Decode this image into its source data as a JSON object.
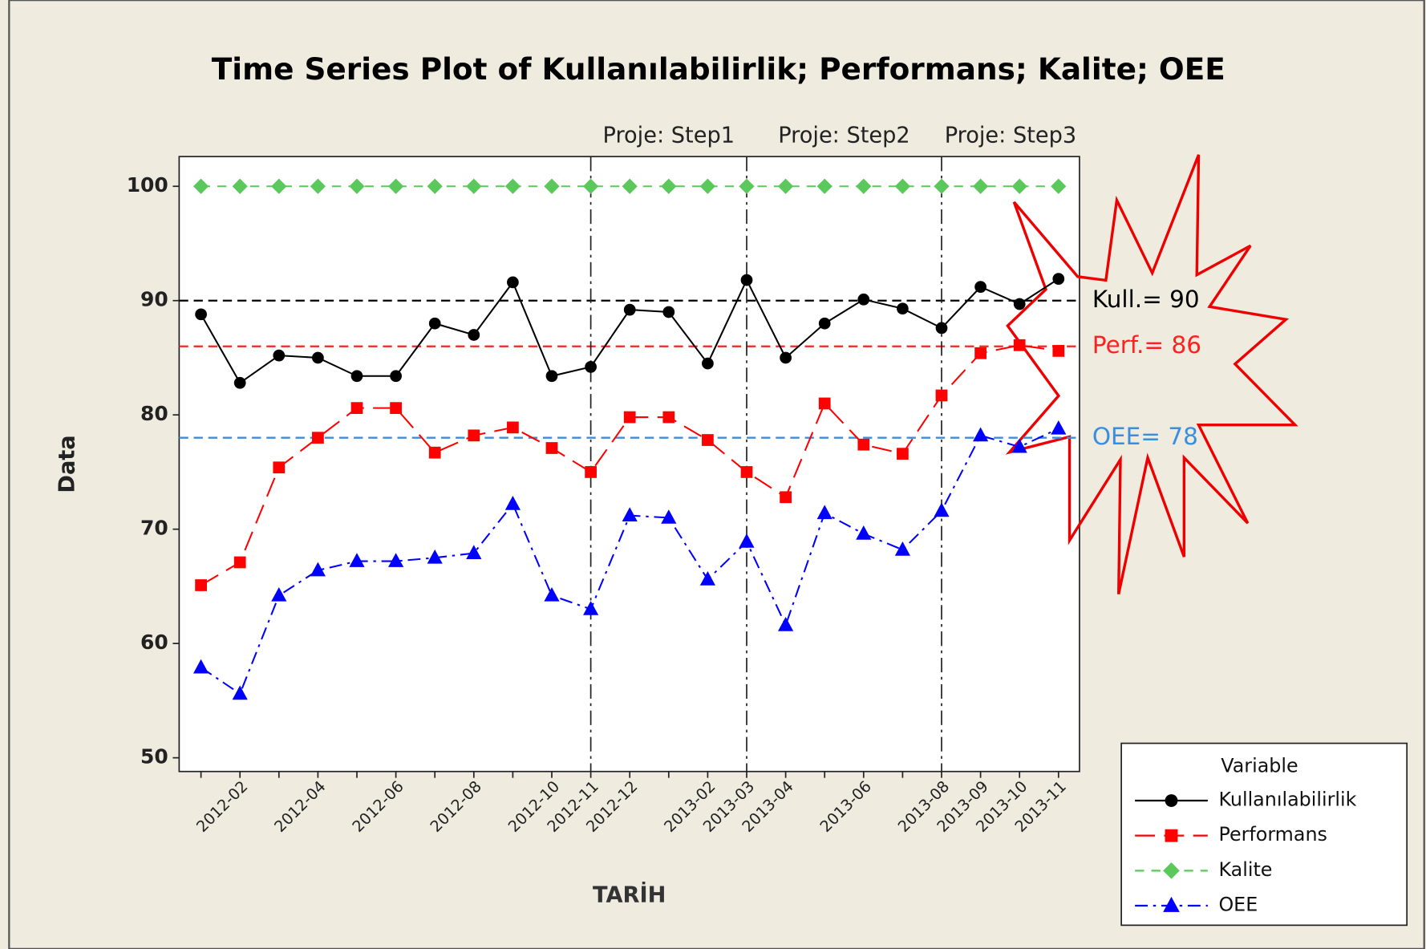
{
  "chart_data": {
    "type": "line",
    "title": "Time Series Plot of Kullanılabilirlik; Performans; Kalite; OEE",
    "x_label": "TARİH",
    "y_label": "Data",
    "categories": [
      null,
      "2012-02",
      null,
      "2012-04",
      null,
      "2012-06",
      null,
      "2012-08",
      null,
      "2012-10",
      "2012-11",
      "2012-12",
      null,
      "2013-02",
      "2013-03",
      "2013-04",
      null,
      "2013-06",
      null,
      "2013-08",
      "2013-09",
      "2013-10",
      "2013-11"
    ],
    "ylim": [
      48.8,
      102.6
    ],
    "yticks": [
      50,
      60,
      70,
      80,
      90,
      100
    ],
    "series": [
      {
        "name": "Kullanılabilirlik",
        "color": "#000000",
        "marker": "circle",
        "linestyle": "solid",
        "values": [
          88.8,
          82.8,
          85.2,
          85.0,
          83.4,
          83.4,
          88.0,
          87.0,
          91.6,
          83.4,
          84.2,
          89.2,
          89.0,
          84.5,
          91.8,
          85.0,
          88.0,
          90.1,
          89.3,
          87.6,
          91.2,
          89.7,
          91.9
        ]
      },
      {
        "name": "Performans",
        "color": "#ff0000",
        "marker": "square",
        "linestyle": "longdash",
        "values": [
          65.1,
          67.1,
          75.4,
          78.0,
          80.6,
          80.6,
          76.7,
          78.2,
          78.9,
          77.1,
          75.0,
          79.8,
          79.8,
          77.8,
          75.0,
          72.8,
          81.0,
          77.4,
          76.6,
          81.7,
          85.4,
          86.1,
          85.6
        ]
      },
      {
        "name": "Kalite",
        "color": "#5bc85b",
        "marker": "diamond",
        "linestyle": "dash",
        "values": [
          100,
          100,
          100,
          100,
          100,
          100,
          100,
          100,
          100,
          100,
          100,
          100,
          100,
          100,
          100,
          100,
          100,
          100,
          100,
          100,
          100,
          100,
          100
        ]
      },
      {
        "name": "OEE",
        "color": "#0000ff",
        "marker": "triangle",
        "linestyle": "dashdot",
        "values": [
          57.9,
          55.6,
          64.2,
          66.4,
          67.2,
          67.2,
          67.5,
          67.9,
          72.2,
          64.2,
          63.0,
          71.2,
          71.0,
          65.6,
          68.9,
          61.6,
          71.4,
          69.6,
          68.2,
          71.6,
          78.2,
          77.2,
          78.8
        ]
      }
    ],
    "reference_lines": [
      {
        "value": 90,
        "label": "Kull.= 90",
        "color": "#000000"
      },
      {
        "value": 86,
        "label": "Perf.= 86",
        "color": "#ff2020"
      },
      {
        "value": 78,
        "label": "OEE= 78",
        "color": "#3a8ee0"
      }
    ],
    "phases": [
      {
        "label": "Proje: Step1",
        "start": "2012-11"
      },
      {
        "label": "Proje: Step2",
        "start": "2013-03"
      },
      {
        "label": "Proje: Step3",
        "start": "2013-08"
      }
    ],
    "legend": {
      "title": "Variable",
      "position": "lower right"
    }
  }
}
